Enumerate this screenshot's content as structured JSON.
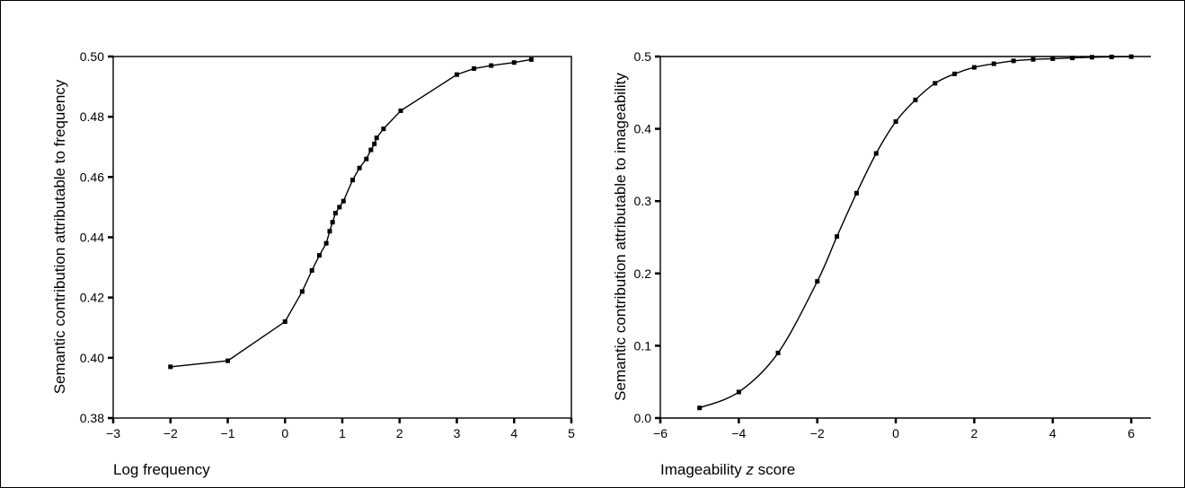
{
  "chart_data": [
    {
      "type": "line",
      "title": "",
      "xlabel": "Log frequency",
      "ylabel": "Semantic contribution attributable to frequency",
      "xlim": [
        -3,
        5
      ],
      "ylim": [
        0.38,
        0.5
      ],
      "xticks": [
        "−3",
        "−2",
        "−1",
        "0",
        "1",
        "2",
        "3",
        "4",
        "5"
      ],
      "yticks": [
        "0.38",
        "0.40",
        "0.42",
        "0.44",
        "0.46",
        "0.48",
        "0.50"
      ],
      "grid": false,
      "markers": true,
      "series": [
        {
          "x": [
            -2,
            -1,
            0,
            0.3,
            0.47,
            0.6,
            0.72,
            0.78,
            0.83,
            0.88,
            0.95,
            1.02,
            1.18,
            1.3,
            1.42,
            1.5,
            1.56,
            1.6,
            1.72,
            2.02,
            3.0,
            3.3,
            3.6,
            4.0,
            4.3
          ],
          "y": [
            0.397,
            0.399,
            0.412,
            0.422,
            0.429,
            0.434,
            0.438,
            0.442,
            0.445,
            0.448,
            0.45,
            0.452,
            0.459,
            0.463,
            0.466,
            0.469,
            0.471,
            0.473,
            0.476,
            0.482,
            0.494,
            0.496,
            0.497,
            0.498,
            0.499
          ]
        }
      ]
    },
    {
      "type": "line",
      "title": "",
      "xlabel_prefix": "Imageability ",
      "xlabel_italic": "z",
      "xlabel_suffix": " score",
      "ylabel": "Semantic contribution attributable to imageability",
      "xlim": [
        -6,
        6.5
      ],
      "ylim": [
        0,
        0.5
      ],
      "xticks": [
        "−6",
        "−4",
        "−2",
        "0",
        "2",
        "4",
        "6"
      ],
      "yticks": [
        "0.0",
        "0.1",
        "0.2",
        "0.3",
        "0.4",
        "0.5"
      ],
      "grid": false,
      "markers": true,
      "series": [
        {
          "x": [
            -5,
            -4,
            -3,
            -2,
            -1.5,
            -1,
            -0.5,
            0,
            0.5,
            1,
            1.5,
            2,
            2.5,
            3,
            3.5,
            4,
            4.5,
            5,
            5.5,
            6
          ],
          "y": [
            0.014,
            0.036,
            0.09,
            0.189,
            0.251,
            0.311,
            0.366,
            0.41,
            0.44,
            0.463,
            0.476,
            0.485,
            0.49,
            0.494,
            0.496,
            0.497,
            0.498,
            0.499,
            0.4995,
            0.4998
          ]
        }
      ]
    }
  ]
}
